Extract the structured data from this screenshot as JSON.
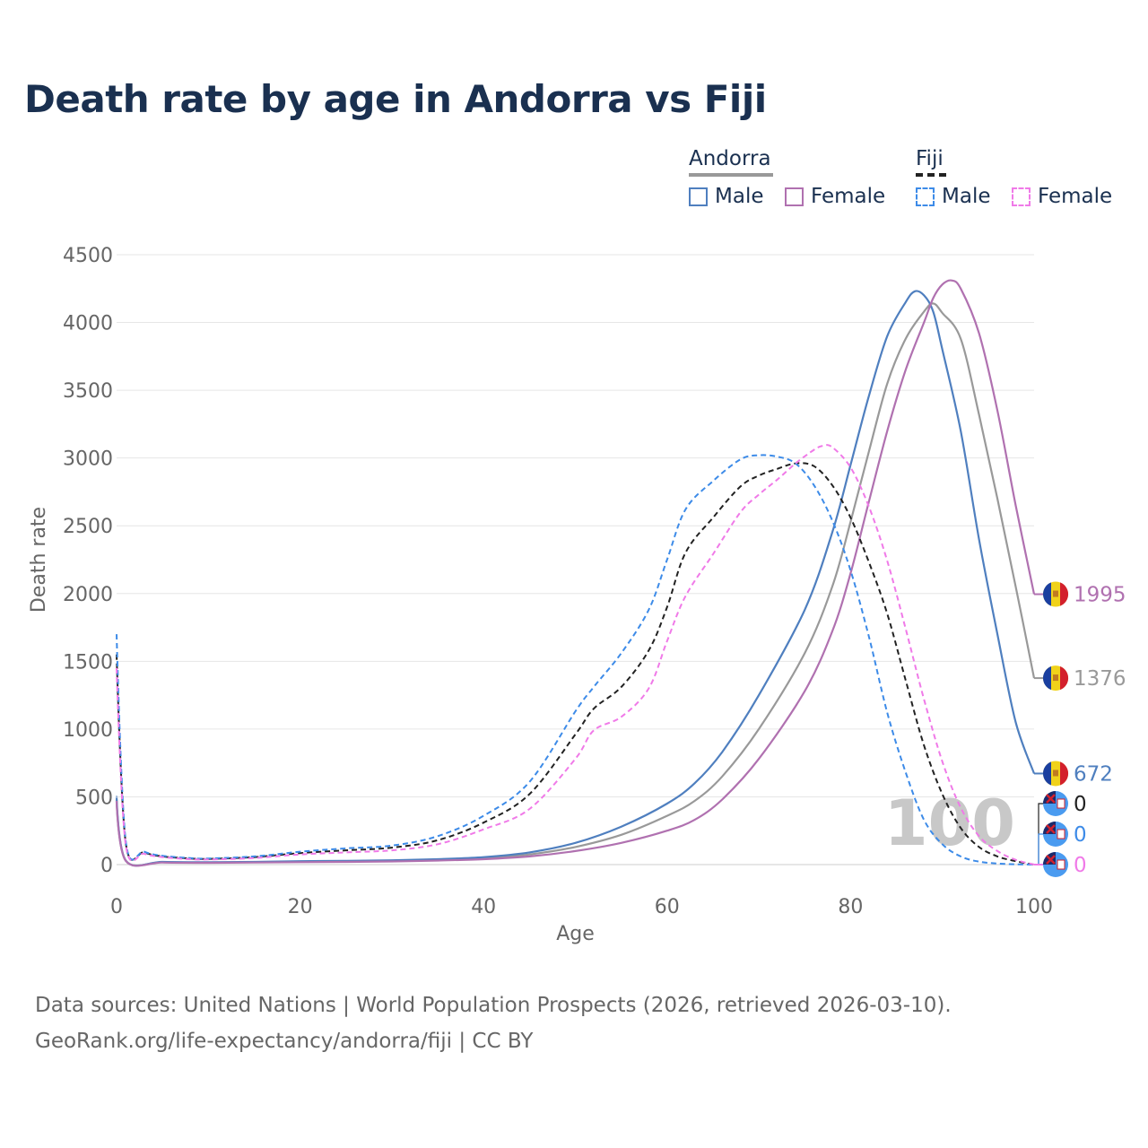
{
  "title": "Death rate by age in Andorra vs Fiji",
  "legend": {
    "groups": [
      {
        "name": "Andorra",
        "color": "#999999",
        "dash": "solid"
      },
      {
        "name": "Fiji",
        "color": "#222222",
        "dash": "dashed"
      }
    ],
    "items": [
      {
        "label": "Male",
        "color": "#4f7fbf",
        "dash": "solid"
      },
      {
        "label": "Female",
        "color": "#b071b0",
        "dash": "solid"
      },
      {
        "label": "Male",
        "color": "#3d8be8",
        "dash": "dashed"
      },
      {
        "label": "Female",
        "color": "#f07ae8",
        "dash": "dashed"
      }
    ]
  },
  "year_watermark": "100",
  "footer": {
    "line1": "Data sources: United Nations | World Population Prospects (2026, retrieved 2026-03-10).",
    "line2": "GeoRank.org/life-expectancy/andorra/fiji | CC BY"
  },
  "chart_data": {
    "type": "line",
    "title": "Death rate by age in Andorra vs Fiji",
    "xlabel": "Age",
    "ylabel": "Death rate",
    "xlim": [
      0,
      100
    ],
    "ylim": [
      0,
      4500
    ],
    "xticks": [
      0,
      20,
      40,
      60,
      80,
      100
    ],
    "yticks": [
      0,
      500,
      1000,
      1500,
      2000,
      2500,
      3000,
      3500,
      4000,
      4500
    ],
    "grid": true,
    "series": [
      {
        "name": "Andorra Total",
        "country": "Andorra",
        "color": "#999999",
        "dash": "solid",
        "points": [
          [
            0,
            480
          ],
          [
            1,
            30
          ],
          [
            5,
            18
          ],
          [
            10,
            15
          ],
          [
            15,
            18
          ],
          [
            20,
            22
          ],
          [
            25,
            25
          ],
          [
            30,
            28
          ],
          [
            35,
            35
          ],
          [
            40,
            48
          ],
          [
            45,
            75
          ],
          [
            50,
            130
          ],
          [
            55,
            220
          ],
          [
            60,
            360
          ],
          [
            63,
            470
          ],
          [
            66,
            650
          ],
          [
            70,
            1000
          ],
          [
            75,
            1560
          ],
          [
            78,
            2050
          ],
          [
            80,
            2530
          ],
          [
            82,
            3050
          ],
          [
            84,
            3550
          ],
          [
            86,
            3880
          ],
          [
            88,
            4080
          ],
          [
            89,
            4140
          ],
          [
            90,
            4070
          ],
          [
            92,
            3880
          ],
          [
            94,
            3320
          ],
          [
            96,
            2700
          ],
          [
            98,
            2050
          ],
          [
            100,
            1376
          ]
        ],
        "end_label": "1376"
      },
      {
        "name": "Andorra Male",
        "country": "Andorra",
        "color": "#4f7fbf",
        "dash": "solid",
        "points": [
          [
            0,
            500
          ],
          [
            1,
            30
          ],
          [
            5,
            20
          ],
          [
            10,
            17
          ],
          [
            15,
            20
          ],
          [
            20,
            25
          ],
          [
            25,
            28
          ],
          [
            30,
            32
          ],
          [
            35,
            40
          ],
          [
            40,
            55
          ],
          [
            45,
            90
          ],
          [
            50,
            160
          ],
          [
            55,
            280
          ],
          [
            60,
            450
          ],
          [
            63,
            600
          ],
          [
            66,
            830
          ],
          [
            70,
            1250
          ],
          [
            75,
            1880
          ],
          [
            78,
            2450
          ],
          [
            80,
            2950
          ],
          [
            82,
            3460
          ],
          [
            84,
            3900
          ],
          [
            86,
            4150
          ],
          [
            87,
            4230
          ],
          [
            88,
            4200
          ],
          [
            89,
            4080
          ],
          [
            90,
            3800
          ],
          [
            92,
            3200
          ],
          [
            94,
            2400
          ],
          [
            96,
            1700
          ],
          [
            98,
            1050
          ],
          [
            100,
            672
          ]
        ],
        "end_label": "672"
      },
      {
        "name": "Andorra Female",
        "country": "Andorra",
        "color": "#b071b0",
        "dash": "solid",
        "points": [
          [
            0,
            470
          ],
          [
            1,
            28
          ],
          [
            5,
            15
          ],
          [
            10,
            13
          ],
          [
            15,
            15
          ],
          [
            20,
            18
          ],
          [
            25,
            20
          ],
          [
            30,
            23
          ],
          [
            35,
            30
          ],
          [
            40,
            40
          ],
          [
            45,
            60
          ],
          [
            50,
            100
          ],
          [
            55,
            160
          ],
          [
            60,
            250
          ],
          [
            63,
            330
          ],
          [
            66,
            480
          ],
          [
            70,
            780
          ],
          [
            75,
            1280
          ],
          [
            78,
            1720
          ],
          [
            80,
            2150
          ],
          [
            82,
            2680
          ],
          [
            84,
            3200
          ],
          [
            86,
            3650
          ],
          [
            88,
            4000
          ],
          [
            89,
            4180
          ],
          [
            90,
            4280
          ],
          [
            91,
            4310
          ],
          [
            92,
            4250
          ],
          [
            94,
            3920
          ],
          [
            96,
            3350
          ],
          [
            98,
            2650
          ],
          [
            100,
            1995
          ]
        ],
        "end_label": "1995"
      },
      {
        "name": "Fiji Total",
        "country": "Fiji",
        "color": "#222222",
        "dash": "dashed",
        "points": [
          [
            0,
            1550
          ],
          [
            1,
            160
          ],
          [
            3,
            90
          ],
          [
            5,
            60
          ],
          [
            8,
            45
          ],
          [
            10,
            42
          ],
          [
            15,
            55
          ],
          [
            20,
            85
          ],
          [
            25,
            105
          ],
          [
            30,
            125
          ],
          [
            35,
            180
          ],
          [
            40,
            310
          ],
          [
            45,
            520
          ],
          [
            50,
            960
          ],
          [
            52,
            1150
          ],
          [
            55,
            1310
          ],
          [
            58,
            1580
          ],
          [
            60,
            1900
          ],
          [
            62,
            2300
          ],
          [
            65,
            2560
          ],
          [
            68,
            2790
          ],
          [
            70,
            2870
          ],
          [
            72,
            2920
          ],
          [
            74,
            2960
          ],
          [
            76,
            2940
          ],
          [
            78,
            2800
          ],
          [
            80,
            2560
          ],
          [
            82,
            2230
          ],
          [
            84,
            1850
          ],
          [
            86,
            1360
          ],
          [
            88,
            880
          ],
          [
            90,
            520
          ],
          [
            92,
            270
          ],
          [
            94,
            130
          ],
          [
            96,
            60
          ],
          [
            98,
            25
          ],
          [
            100,
            0
          ]
        ],
        "end_label": "0"
      },
      {
        "name": "Fiji Male",
        "country": "Fiji",
        "color": "#3d8be8",
        "dash": "dashed",
        "points": [
          [
            0,
            1700
          ],
          [
            1,
            175
          ],
          [
            3,
            95
          ],
          [
            5,
            65
          ],
          [
            8,
            48
          ],
          [
            10,
            45
          ],
          [
            15,
            60
          ],
          [
            20,
            95
          ],
          [
            25,
            120
          ],
          [
            30,
            140
          ],
          [
            35,
            210
          ],
          [
            40,
            360
          ],
          [
            45,
            610
          ],
          [
            50,
            1130
          ],
          [
            52,
            1310
          ],
          [
            55,
            1560
          ],
          [
            58,
            1880
          ],
          [
            60,
            2250
          ],
          [
            62,
            2620
          ],
          [
            65,
            2830
          ],
          [
            68,
            2990
          ],
          [
            70,
            3020
          ],
          [
            72,
            3010
          ],
          [
            74,
            2960
          ],
          [
            76,
            2800
          ],
          [
            78,
            2540
          ],
          [
            80,
            2170
          ],
          [
            82,
            1680
          ],
          [
            84,
            1120
          ],
          [
            86,
            680
          ],
          [
            88,
            330
          ],
          [
            90,
            150
          ],
          [
            92,
            60
          ],
          [
            94,
            22
          ],
          [
            96,
            8
          ],
          [
            98,
            2
          ],
          [
            100,
            0
          ]
        ],
        "end_label": "0"
      },
      {
        "name": "Fiji Female",
        "country": "Fiji",
        "color": "#f07ae8",
        "dash": "dashed",
        "points": [
          [
            0,
            1450
          ],
          [
            1,
            145
          ],
          [
            3,
            80
          ],
          [
            5,
            55
          ],
          [
            8,
            40
          ],
          [
            10,
            38
          ],
          [
            15,
            48
          ],
          [
            20,
            75
          ],
          [
            25,
            90
          ],
          [
            30,
            105
          ],
          [
            35,
            150
          ],
          [
            40,
            260
          ],
          [
            45,
            410
          ],
          [
            50,
            780
          ],
          [
            52,
            990
          ],
          [
            55,
            1090
          ],
          [
            58,
            1300
          ],
          [
            60,
            1650
          ],
          [
            62,
            1980
          ],
          [
            65,
            2290
          ],
          [
            68,
            2600
          ],
          [
            70,
            2730
          ],
          [
            72,
            2840
          ],
          [
            74,
            2960
          ],
          [
            76,
            3060
          ],
          [
            77,
            3090
          ],
          [
            78,
            3080
          ],
          [
            80,
            2930
          ],
          [
            82,
            2640
          ],
          [
            84,
            2240
          ],
          [
            86,
            1740
          ],
          [
            88,
            1220
          ],
          [
            90,
            760
          ],
          [
            92,
            420
          ],
          [
            94,
            210
          ],
          [
            96,
            100
          ],
          [
            98,
            35
          ],
          [
            100,
            0
          ]
        ],
        "end_label": "0"
      }
    ]
  }
}
